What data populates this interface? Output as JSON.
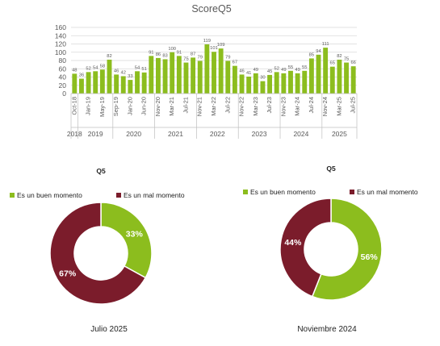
{
  "colors": {
    "green": "#8cbd1e",
    "maroon": "#7b1c2b",
    "grid": "#d9d9d9",
    "text": "#595959",
    "dark": "#222222"
  },
  "chart_data": [
    {
      "type": "bar",
      "title": "ScoreQ5",
      "ylim": [
        0,
        160
      ],
      "yticks": [
        "0",
        "20",
        "40",
        "60",
        "80",
        "100",
        "120",
        "140",
        "160"
      ],
      "grid": true,
      "x_tick_labels": [
        "Oct-18",
        "Jan-19",
        "May-19",
        "Sep-19",
        "Jan-20",
        "Jun-20",
        "Nov-20",
        "Mar-21",
        "Jul-21",
        "Nov-21",
        "Mar-22",
        "Jul-22",
        "Nov-22",
        "Mar-23",
        "Jul-23",
        "Nov-23",
        "Mar-24",
        "Jul-24",
        "Nov-24",
        "Mar-25",
        "Jul-25"
      ],
      "years": [
        "2018",
        "2019",
        "2020",
        "2021",
        "2022",
        "2023",
        "2024",
        "2025"
      ],
      "values": [
        48,
        36,
        52,
        54,
        58,
        82,
        46,
        42,
        33,
        54,
        51,
        91,
        86,
        83,
        100,
        91,
        75,
        87,
        79,
        119,
        101,
        109,
        79,
        67,
        46,
        41,
        49,
        30,
        45,
        52,
        49,
        55,
        49,
        55,
        85,
        94,
        111,
        65,
        82,
        75,
        66
      ],
      "data_labels": [
        "48",
        "36",
        "52",
        "54",
        "58",
        "82",
        "46",
        "42",
        "33",
        "54",
        "51",
        "91",
        "86",
        "83",
        "100",
        "91",
        "75",
        "87",
        "79",
        "119",
        "101",
        "109",
        "79",
        "67",
        "46",
        "41",
        "49",
        "30",
        "45",
        "52",
        "49",
        "55",
        "49",
        "55",
        "85",
        "94",
        "111",
        "65",
        "82",
        "75",
        "66"
      ]
    },
    {
      "type": "pie",
      "title": "Q5",
      "caption": "Julio 2025",
      "legend": [
        "Es un buen momento",
        "Es un mal momento"
      ],
      "values": [
        33,
        67
      ],
      "labels": [
        "33%",
        "67%"
      ]
    },
    {
      "type": "pie",
      "title": "Q5",
      "caption": "Noviembre 2024",
      "legend": [
        "Es un buen momento",
        "Es un mal momento"
      ],
      "values": [
        56,
        44
      ],
      "labels": [
        "56%",
        "44%"
      ]
    }
  ]
}
